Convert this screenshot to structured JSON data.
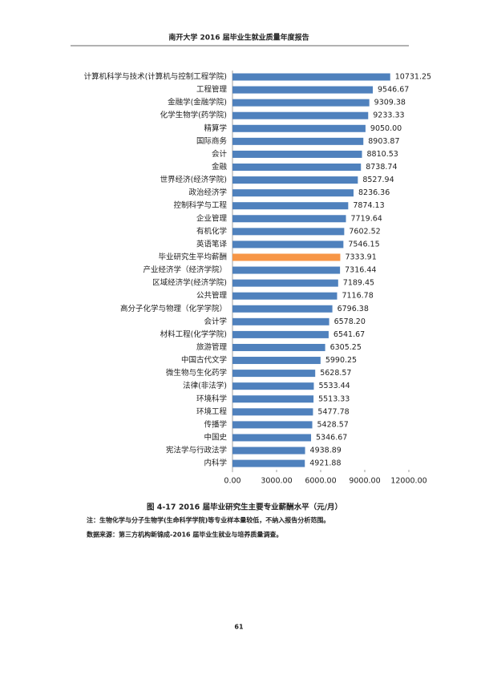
{
  "header": "南开大学 2016 届毕业生就业质量年度报告",
  "chart_data": {
    "type": "barh",
    "categories": [
      "计算机科学与技术(计算机与控制工程学院)",
      "工程管理",
      "金融学(金融学院)",
      "化学生物学(药学院)",
      "精算学",
      "国际商务",
      "会计",
      "金融",
      "世界经济(经济学院)",
      "政治经济学",
      "控制科学与工程",
      "企业管理",
      "有机化学",
      "英语笔译",
      "毕业研究生平均薪酬",
      "产业经济学（经济学院）",
      "区域经济学(经济学院)",
      "公共管理",
      "高分子化学与物理（化学学院）",
      "会计学",
      "材料工程(化学学院)",
      "旅游管理",
      "中国古代文学",
      "微生物与生化药学",
      "法律(非法学)",
      "环境科学",
      "环境工程",
      "传播学",
      "中国史",
      "宪法学与行政法学",
      "内科学"
    ],
    "values": [
      10731.25,
      9546.67,
      9309.38,
      9233.33,
      9050,
      8903.87,
      8810.53,
      8738.74,
      8527.94,
      8236.36,
      7874.13,
      7719.64,
      7602.52,
      7546.15,
      7333.91,
      7316.44,
      7189.45,
      7116.78,
      6796.38,
      6578.2,
      6541.67,
      6305.25,
      5990.25,
      5628.57,
      5533.44,
      5513.33,
      5477.78,
      5428.57,
      5346.67,
      4938.89,
      4921.88
    ],
    "value_labels": [
      "10731.25",
      "9546.67",
      "9309.38",
      "9233.33",
      "9050.00",
      "8903.87",
      "8810.53",
      "8738.74",
      "8527.94",
      "8236.36",
      "7874.13",
      "7719.64",
      "7602.52",
      "7546.15",
      "7333.91",
      "7316.44",
      "7189.45",
      "7116.78",
      "6796.38",
      "6578.20",
      "6541.67",
      "6305.25",
      "5990.25",
      "5628.57",
      "5533.44",
      "5513.33",
      "5477.78",
      "5428.57",
      "5346.67",
      "4938.89",
      "4921.88"
    ],
    "colors": [
      "#4f81bd",
      "#4f81bd",
      "#4f81bd",
      "#4f81bd",
      "#4f81bd",
      "#4f81bd",
      "#4f81bd",
      "#4f81bd",
      "#4f81bd",
      "#4f81bd",
      "#4f81bd",
      "#4f81bd",
      "#4f81bd",
      "#4f81bd",
      "#f79646",
      "#4f81bd",
      "#4f81bd",
      "#4f81bd",
      "#4f81bd",
      "#4f81bd",
      "#4f81bd",
      "#4f81bd",
      "#4f81bd",
      "#4f81bd",
      "#4f81bd",
      "#4f81bd",
      "#4f81bd",
      "#4f81bd",
      "#4f81bd",
      "#4f81bd",
      "#4f81bd"
    ],
    "xlim": [
      0,
      12000
    ],
    "xticks": [
      {
        "value": 0,
        "label": "0.00"
      },
      {
        "value": 3000,
        "label": "3000.00"
      },
      {
        "value": 6000,
        "label": "6000.00"
      },
      {
        "value": 9000,
        "label": "9000.00"
      },
      {
        "value": 12000,
        "label": "12000.00"
      }
    ]
  },
  "caption": "图 4-17   2016 届毕业研究生主要专业薪酬水平（元/月）",
  "notes": [
    "注：生物化学与分子生物学(生命科学学院)等专业样本量较低，不纳入报告分析范围。",
    "数据来源：第三方机构新锦成-2016 届毕业生就业与培养质量调查。"
  ],
  "page_number": "61"
}
